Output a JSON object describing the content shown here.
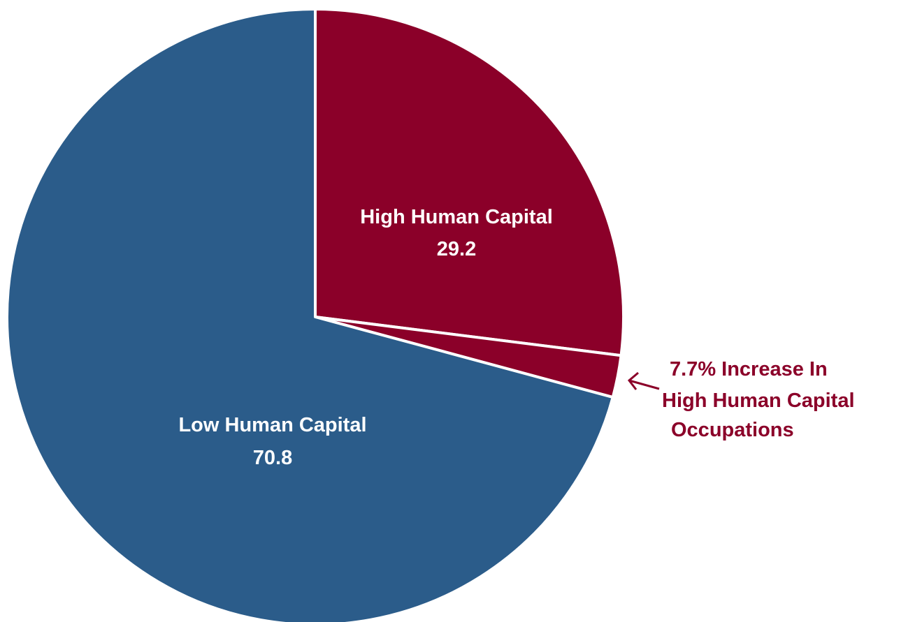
{
  "chart_data": {
    "type": "pie",
    "slices": [
      {
        "name": "High Human Capital",
        "value": 29.2,
        "label_value": "29.2",
        "color": "#8B0029"
      },
      {
        "name": "Low Human Capital",
        "value": 70.8,
        "label_value": "70.8",
        "color": "#2B5C8A"
      }
    ],
    "highlight": {
      "description": "7.7% increase wedge within High Human Capital",
      "fraction_of_total": 0.022,
      "color": "#8B0029"
    },
    "annotation": {
      "lines": [
        "7.7% Increase In",
        "High Human Capital",
        "Occupations"
      ],
      "color": "#8B0029"
    },
    "start_angle_deg": 0,
    "direction": "clockwise",
    "separator_color": "#ffffff"
  }
}
